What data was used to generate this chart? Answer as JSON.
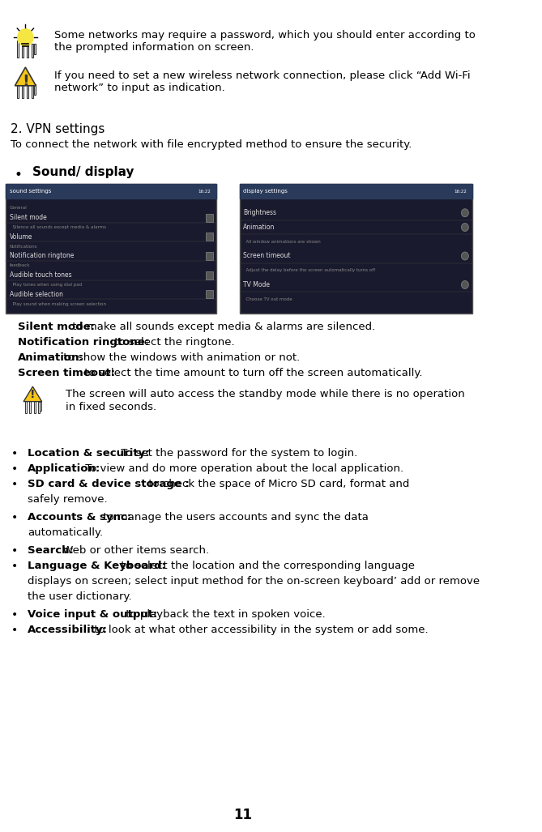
{
  "bg_color": "#ffffff",
  "text_color": "#000000",
  "page_number": "11",
  "sections": [
    {
      "type": "icon_text",
      "icon": "lightbulb",
      "text": "Some networks may require a password, which you should enter according to\nthe prompted information on screen."
    },
    {
      "type": "icon_text",
      "icon": "warning_hand",
      "text": "If you need to set a new wireless network connection, please click “Add Wi-Fi\nnetwork” to input as indication."
    },
    {
      "type": "heading2",
      "text": "2. VPN settings"
    },
    {
      "type": "paragraph",
      "text": "To connect the network with file encrypted method to ensure the security."
    },
    {
      "type": "bullet_bold",
      "bullet": "•",
      "bold_text": "Sound/ display",
      "rest_text": ""
    },
    {
      "type": "two_screenshots"
    },
    {
      "type": "indented_bold_text",
      "bold": "Silent mode:",
      "rest": " to make all sounds except media & alarms are silenced."
    },
    {
      "type": "indented_bold_text",
      "bold": "Notification ringtone:",
      "rest": " to select the ringtone."
    },
    {
      "type": "indented_bold_text",
      "bold": "Animation:",
      "rest": " to show the windows with animation or not."
    },
    {
      "type": "indented_bold_text",
      "bold": "Screen timeout:",
      "rest": " to select the time amount to turn off the screen automatically."
    },
    {
      "type": "icon_text_small",
      "icon": "warning_hand2",
      "text": "The screen will auto access the standby mode while there is no operation\nin fixed seconds."
    },
    {
      "type": "bullet_item",
      "bold": "Location & security:",
      "rest": " To set the password for the system to login."
    },
    {
      "type": "bullet_item",
      "bold": "Application:",
      "rest": " To view and do more operation about the local application."
    },
    {
      "type": "bullet_item",
      "bold": "SD card & device storage :",
      "rest": " to check the space of Micro SD card, format and\nsafely remove."
    },
    {
      "type": "bullet_item",
      "bold": "Accounts & sync:",
      "rest": " to manage the users accounts and sync the data\nautomatically."
    },
    {
      "type": "bullet_item",
      "bold": "Search:",
      "rest": " Web or other items search."
    },
    {
      "type": "bullet_item",
      "bold": "Language & Keyboard:",
      "rest": " to select the location and the corresponding language\ndisplays on screen; select input method for the on-screen keyboard' add or remove\nthe user dictionary."
    },
    {
      "type": "bullet_item",
      "bold": "Voice input & output:",
      "rest": " to playback the text in spoken voice."
    },
    {
      "type": "bullet_item",
      "bold": "Accessibility:",
      "rest": " to look at what other accessibility in the system or add some."
    }
  ]
}
